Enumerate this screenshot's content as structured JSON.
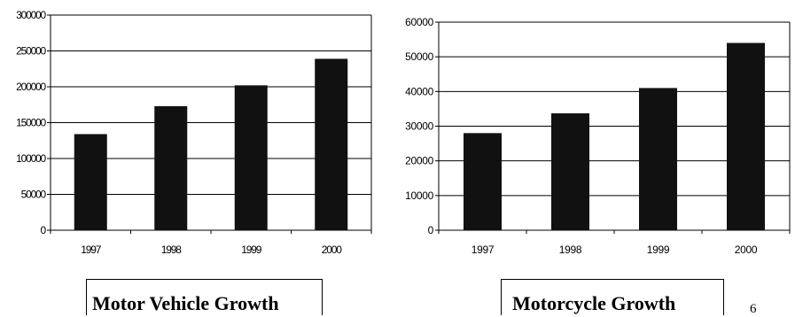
{
  "chart_data": [
    {
      "type": "bar",
      "categories": [
        "1997",
        "1998",
        "1999",
        "2000"
      ],
      "values": [
        134000,
        173000,
        202000,
        239000
      ],
      "title": "Motor Vehicle Growth",
      "xlabel": "",
      "ylabel": "",
      "ylim": [
        0,
        300000
      ],
      "yticks": [
        "0",
        "50000",
        "100000",
        "150000",
        "200000",
        "250000",
        "300000"
      ],
      "grid": true,
      "bar_color": "#111111"
    },
    {
      "type": "bar",
      "categories": [
        "1997",
        "1998",
        "1999",
        "2000"
      ],
      "values": [
        28000,
        33700,
        41000,
        54000
      ],
      "title": "Motorcycle Growth",
      "xlabel": "",
      "ylabel": "",
      "ylim": [
        0,
        60000
      ],
      "yticks": [
        "0",
        "10000",
        "20000",
        "30000",
        "40000",
        "50000",
        "60000"
      ],
      "grid": true,
      "bar_color": "#111111"
    }
  ],
  "page_number": "6"
}
